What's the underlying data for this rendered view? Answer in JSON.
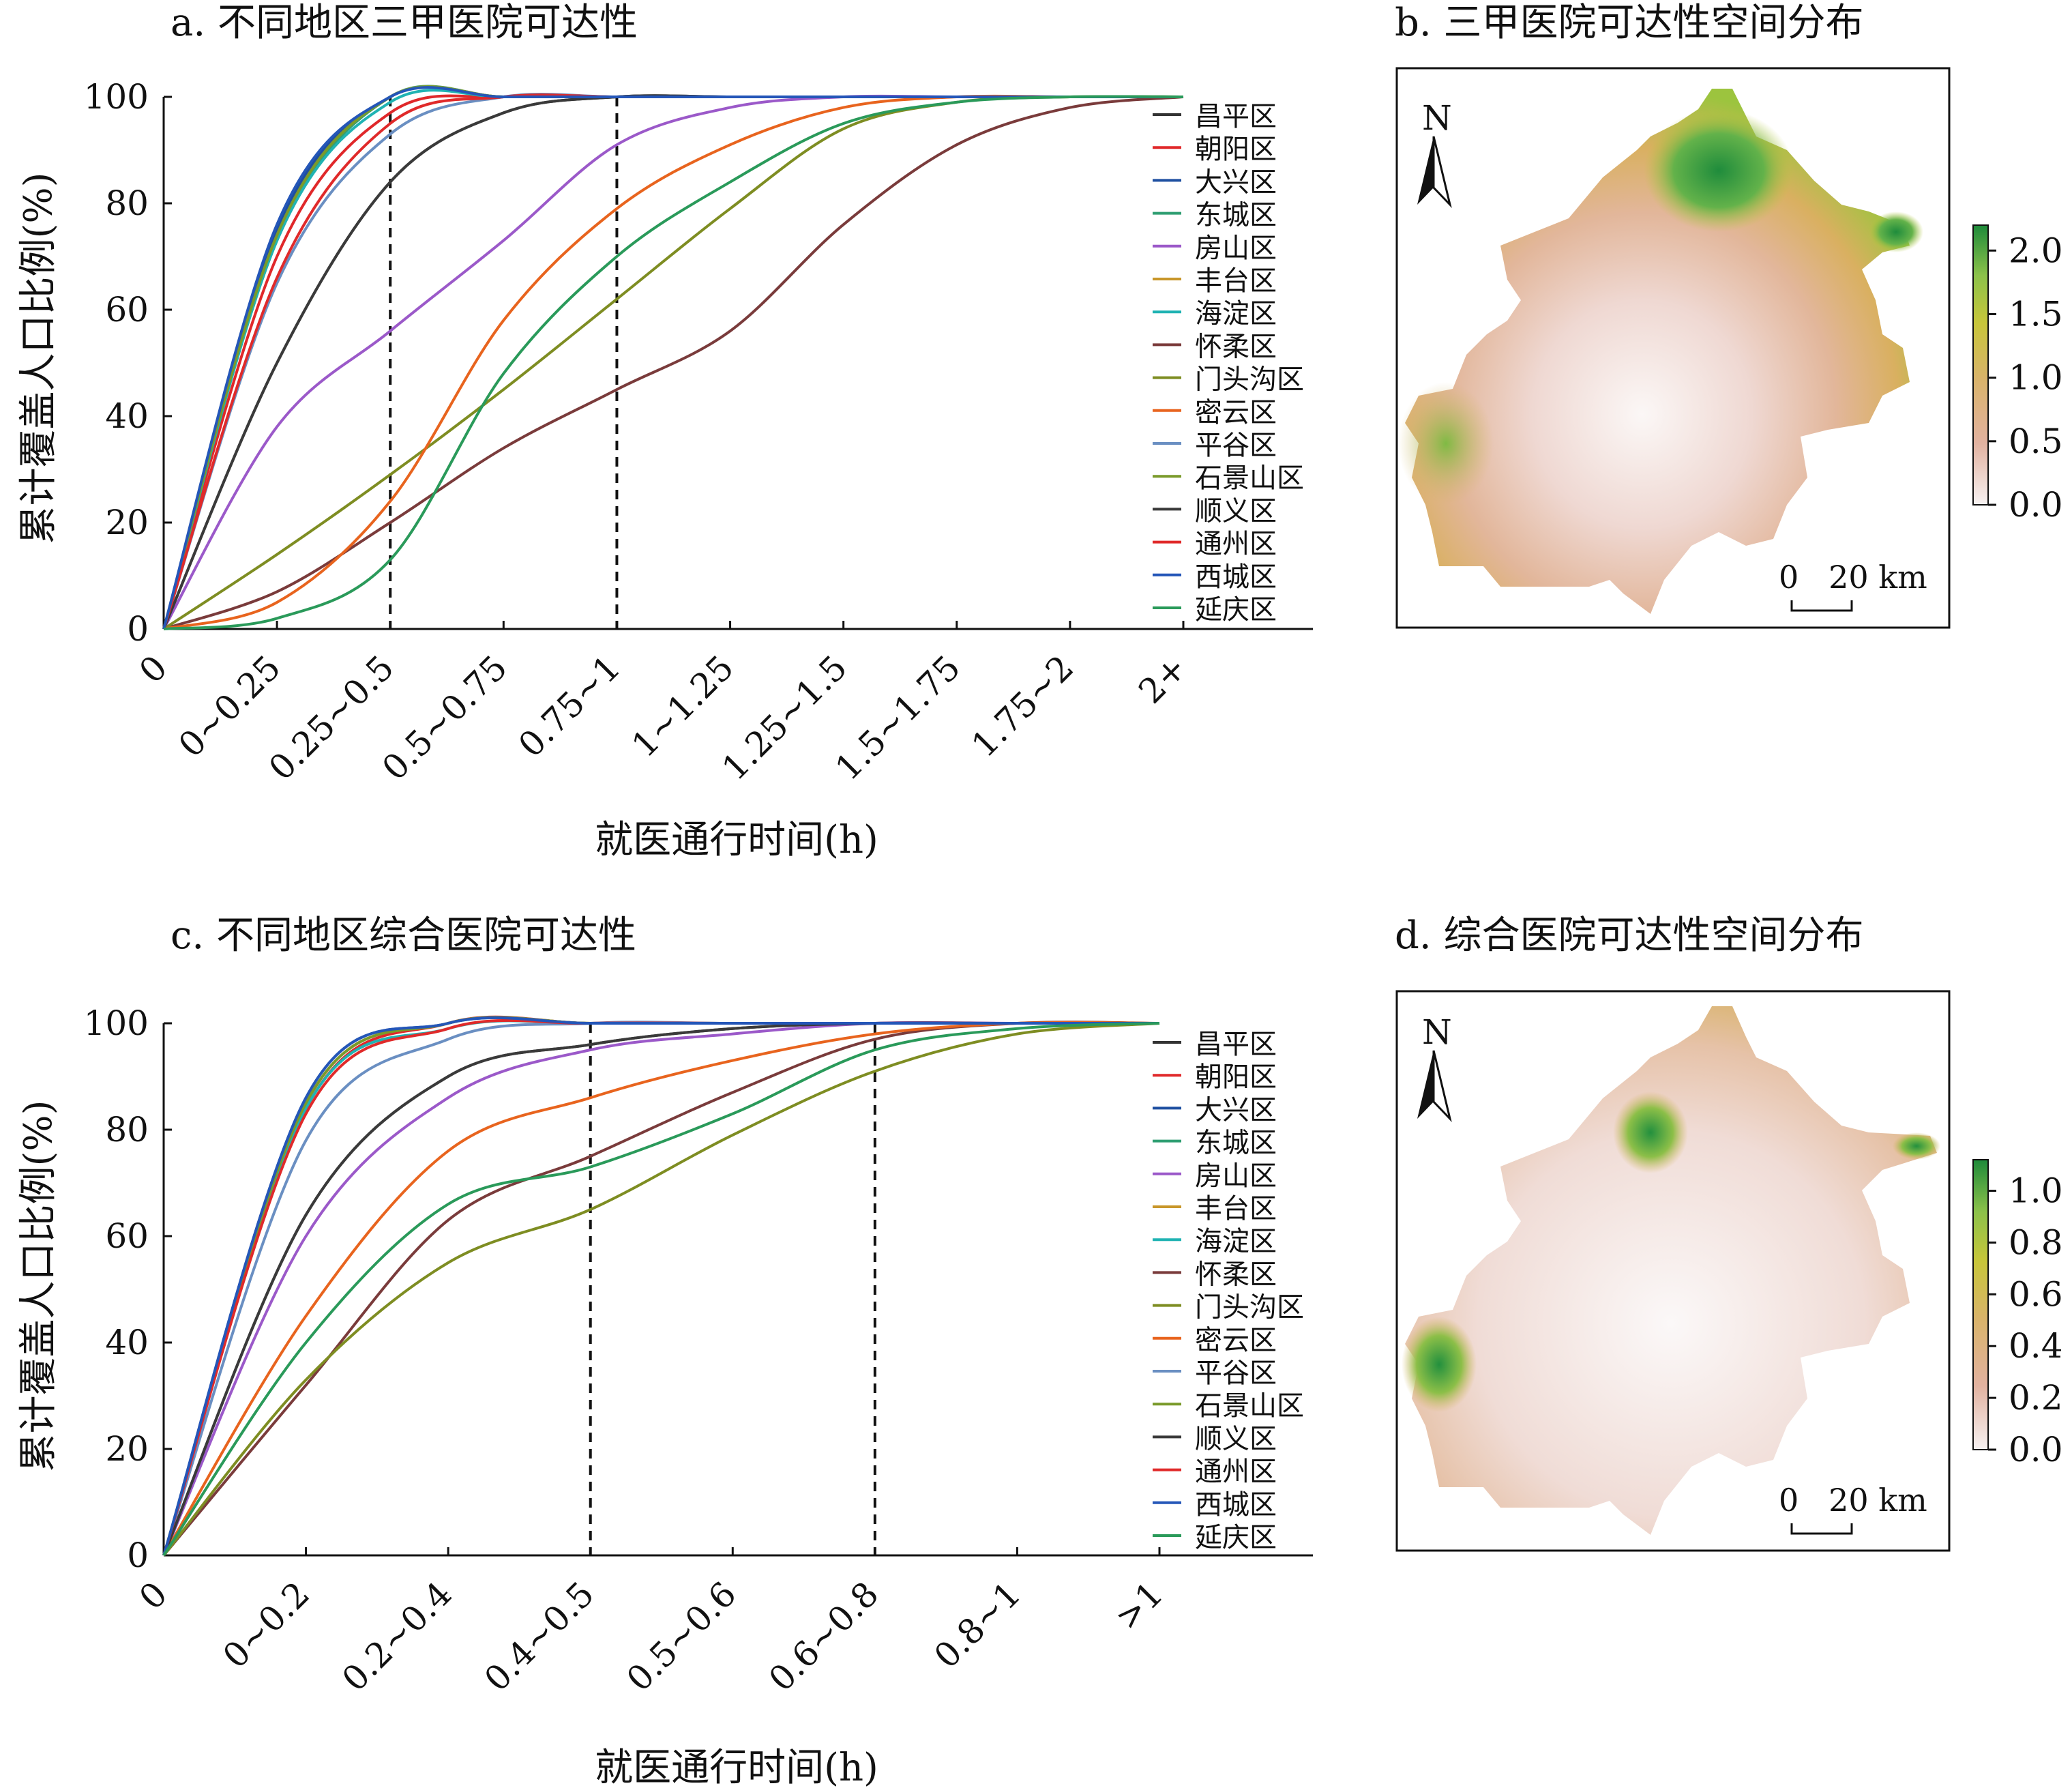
{
  "legend_names": [
    "昌平区",
    "朝阳区",
    "大兴区",
    "东城区",
    "房山区",
    "丰台区",
    "海淀区",
    "怀柔区",
    "门头沟区",
    "密云区",
    "平谷区",
    "石景山区",
    "顺义区",
    "通州区",
    "西城区",
    "延庆区"
  ],
  "series_colors": [
    "#333333",
    "#e0282a",
    "#1e4fa0",
    "#2f9e72",
    "#9b59c9",
    "#c8962a",
    "#20b3b3",
    "#7a3b3b",
    "#7e8d22",
    "#e8641e",
    "#6a8fc2",
    "#7a9a2a",
    "#3a3a3a",
    "#e02a2a",
    "#2456b8",
    "#2a9a5a"
  ],
  "chart_data": [
    {
      "panel": "a",
      "type": "line",
      "title": "a. 不同地区三甲医院可达性",
      "xlabel": "就医通行时间(h)",
      "ylabel": "累计覆盖人口比例(%)",
      "ylim": [
        0,
        100
      ],
      "yticks": [
        "0",
        "20",
        "40",
        "60",
        "80",
        "100"
      ],
      "categories": [
        "0",
        "0~0.25",
        "0.25~0.5",
        "0.5~0.75",
        "0.75~1",
        "1~1.25",
        "1.25~1.5",
        "1.5~1.75",
        "1.75~2",
        "2+"
      ],
      "x": [
        0,
        0.25,
        0.5,
        0.75,
        1,
        1.25,
        1.5,
        1.75,
        2,
        2.25
      ],
      "vlines": [
        0.5,
        1.0
      ],
      "legend_position": "right",
      "series": [
        {
          "name": "昌平区",
          "values": [
            0,
            50,
            84,
            97,
            100,
            100,
            100,
            100,
            100,
            100
          ]
        },
        {
          "name": "朝阳区",
          "values": [
            0,
            70,
            97,
            100,
            100,
            100,
            100,
            100,
            100,
            100
          ]
        },
        {
          "name": "大兴区",
          "values": [
            0,
            75,
            100,
            100,
            100,
            100,
            100,
            100,
            100,
            100
          ]
        },
        {
          "name": "东城区",
          "values": [
            0,
            73,
            100,
            100,
            100,
            100,
            100,
            100,
            100,
            100
          ]
        },
        {
          "name": "房山区",
          "values": [
            0,
            38,
            56,
            73,
            91,
            98,
            100,
            100,
            100,
            100
          ]
        },
        {
          "name": "丰台区",
          "values": [
            0,
            74,
            100,
            100,
            100,
            100,
            100,
            100,
            100,
            100
          ]
        },
        {
          "name": "海淀区",
          "values": [
            0,
            73,
            99,
            100,
            100,
            100,
            100,
            100,
            100,
            100
          ]
        },
        {
          "name": "怀柔区",
          "values": [
            0,
            7,
            20,
            34,
            45,
            56,
            76,
            91,
            98,
            100
          ]
        },
        {
          "name": "门头沟区",
          "values": [
            0,
            14,
            29,
            45,
            62,
            79,
            94,
            99,
            100,
            100
          ]
        },
        {
          "name": "密云区",
          "values": [
            0,
            5,
            24,
            58,
            79,
            91,
            98,
            100,
            100,
            100
          ]
        },
        {
          "name": "平谷区",
          "values": [
            0,
            65,
            93,
            100,
            100,
            100,
            100,
            100,
            100,
            100
          ]
        },
        {
          "name": "石景山区",
          "values": [
            0,
            74,
            100,
            100,
            100,
            100,
            100,
            100,
            100,
            100
          ]
        },
        {
          "name": "顺义区",
          "values": [
            0,
            50,
            84,
            97,
            100,
            100,
            100,
            100,
            100,
            100
          ]
        },
        {
          "name": "通州区",
          "values": [
            0,
            66,
            95,
            100,
            100,
            100,
            100,
            100,
            100,
            100
          ]
        },
        {
          "name": "西城区",
          "values": [
            0,
            76,
            100,
            100,
            100,
            100,
            100,
            100,
            100,
            100
          ]
        },
        {
          "name": "延庆区",
          "values": [
            0,
            2,
            13,
            48,
            70,
            84,
            95,
            99,
            100,
            100
          ]
        }
      ]
    },
    {
      "panel": "b",
      "type": "heatmap",
      "title": "b. 三甲医院可达性空间分布",
      "colorbar_ticks": [
        "0.0",
        "0.5",
        "1.0",
        "1.5",
        "2.0"
      ],
      "colorbar_range": [
        0,
        2.2
      ],
      "north_label": "N",
      "scale_label": "0   20 km"
    },
    {
      "panel": "c",
      "type": "line",
      "title": "c. 不同地区综合医院可达性",
      "xlabel": "就医通行时间(h)",
      "ylabel": "累计覆盖人口比例(%)",
      "ylim": [
        0,
        100
      ],
      "yticks": [
        "0",
        "20",
        "40",
        "60",
        "80",
        "100"
      ],
      "categories": [
        "0",
        "0~0.2",
        "0.2~0.4",
        "0.4~0.5",
        "0.5~0.6",
        "0.6~0.8",
        "0.8~1",
        ">1"
      ],
      "x": [
        0,
        0.2,
        0.4,
        0.6,
        0.8,
        1.0,
        1.2,
        1.4
      ],
      "vlines": [
        0.6,
        1.0
      ],
      "legend_position": "right",
      "series": [
        {
          "name": "昌平区",
          "values": [
            0,
            64,
            90,
            96,
            99,
            100,
            100,
            100
          ]
        },
        {
          "name": "朝阳区",
          "values": [
            0,
            84,
            100,
            100,
            100,
            100,
            100,
            100
          ]
        },
        {
          "name": "大兴区",
          "values": [
            0,
            86,
            100,
            100,
            100,
            100,
            100,
            100
          ]
        },
        {
          "name": "东城区",
          "values": [
            0,
            85,
            100,
            100,
            100,
            100,
            100,
            100
          ]
        },
        {
          "name": "房山区",
          "values": [
            0,
            60,
            86,
            95,
            98,
            100,
            100,
            100
          ]
        },
        {
          "name": "丰台区",
          "values": [
            0,
            85,
            100,
            100,
            100,
            100,
            100,
            100
          ]
        },
        {
          "name": "海淀区",
          "values": [
            0,
            84,
            99,
            100,
            100,
            100,
            100,
            100
          ]
        },
        {
          "name": "怀柔区",
          "values": [
            0,
            32,
            63,
            75,
            87,
            97,
            100,
            100
          ]
        },
        {
          "name": "门头沟区",
          "values": [
            0,
            33,
            55,
            65,
            79,
            91,
            98,
            100
          ]
        },
        {
          "name": "密云区",
          "values": [
            0,
            45,
            76,
            86,
            93,
            98,
            100,
            100
          ]
        },
        {
          "name": "平谷区",
          "values": [
            0,
            78,
            97,
            100,
            100,
            100,
            100,
            100
          ]
        },
        {
          "name": "石景山区",
          "values": [
            0,
            85,
            100,
            100,
            100,
            100,
            100,
            100
          ]
        },
        {
          "name": "顺义区",
          "values": [
            0,
            64,
            90,
            96,
            99,
            100,
            100,
            100
          ]
        },
        {
          "name": "通州区",
          "values": [
            0,
            83,
            99,
            100,
            100,
            100,
            100,
            100
          ]
        },
        {
          "name": "西城区",
          "values": [
            0,
            86,
            100,
            100,
            100,
            100,
            100,
            100
          ]
        },
        {
          "name": "延庆区",
          "values": [
            0,
            40,
            66,
            73,
            83,
            95,
            99,
            100
          ]
        }
      ]
    },
    {
      "panel": "d",
      "type": "heatmap",
      "title": "d. 综合医院可达性空间分布",
      "colorbar_ticks": [
        "0.0",
        "0.2",
        "0.4",
        "0.6",
        "0.8",
        "1.0"
      ],
      "colorbar_range": [
        0,
        1.12
      ],
      "north_label": "N",
      "scale_label": "0   20 km"
    }
  ]
}
